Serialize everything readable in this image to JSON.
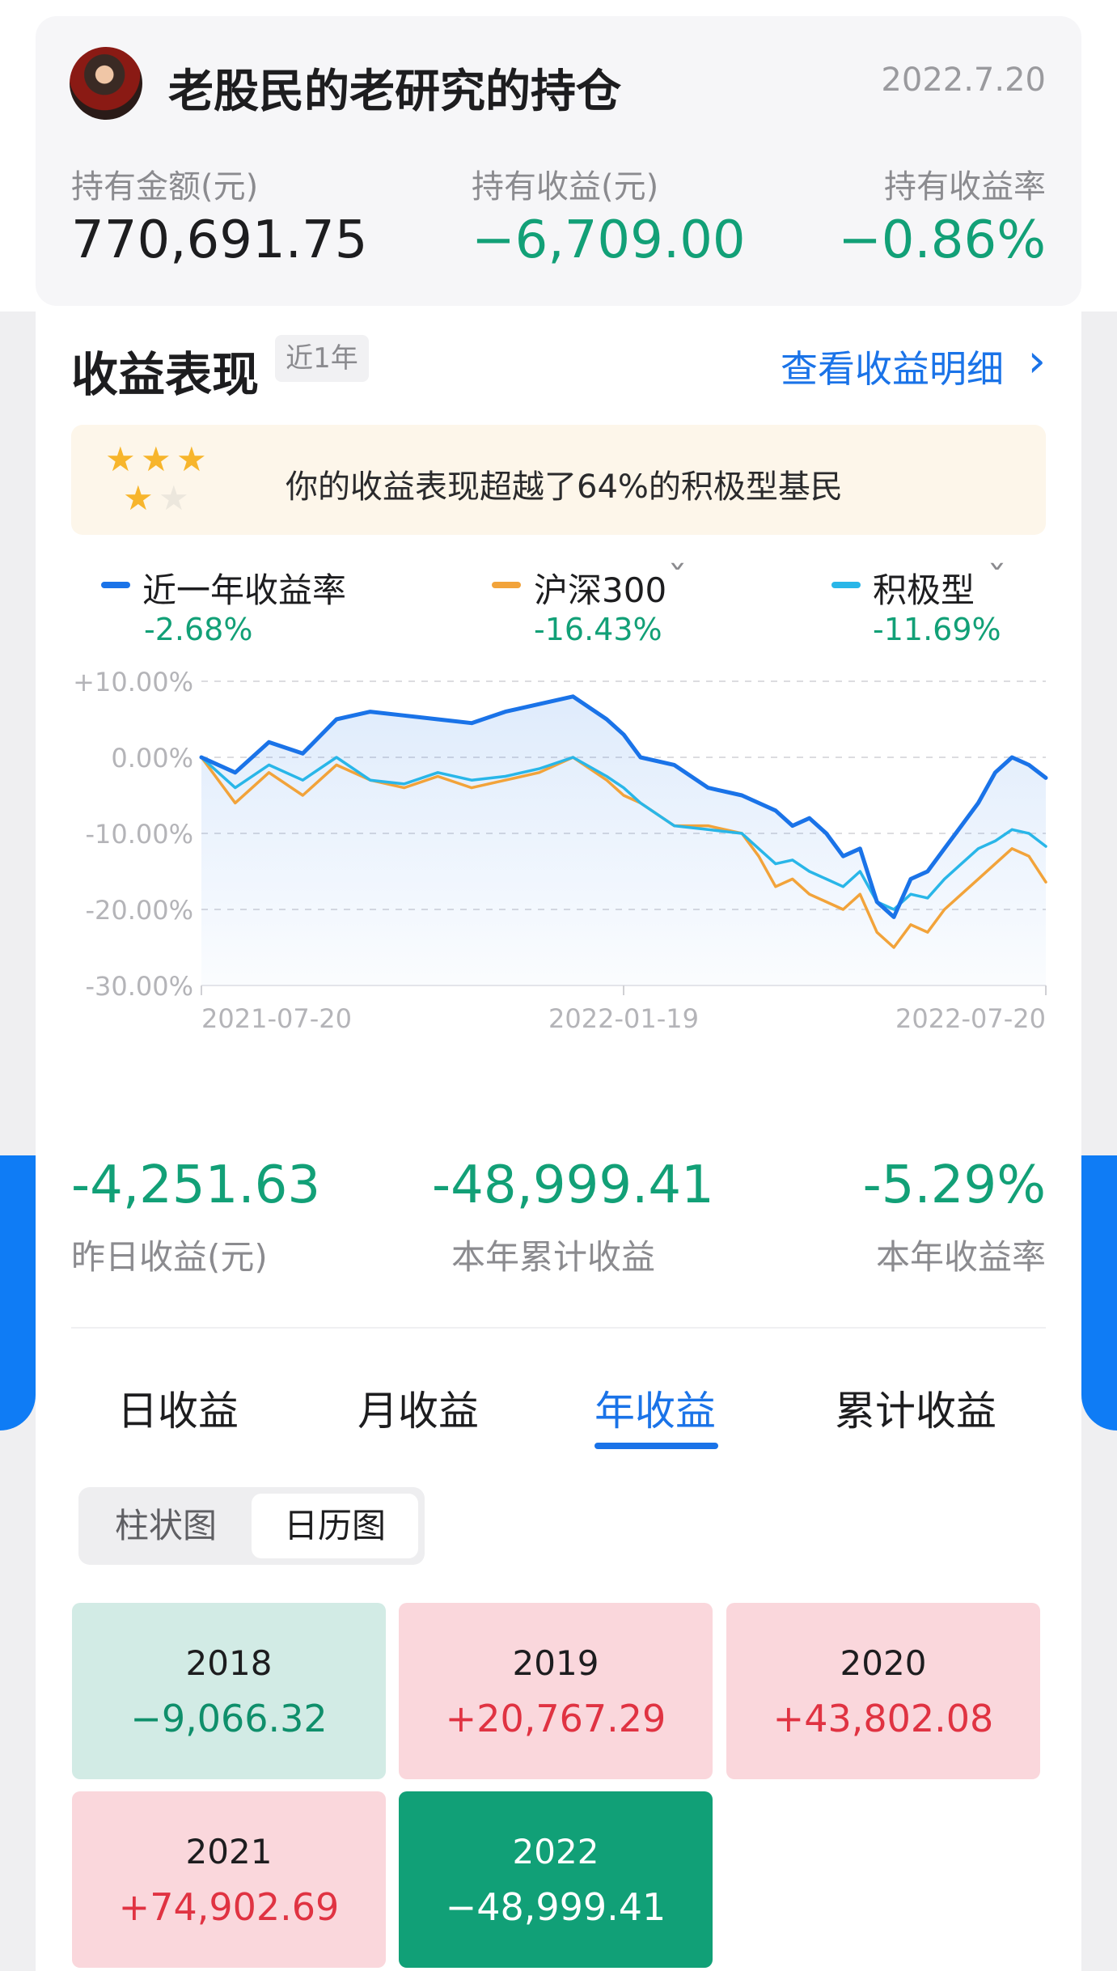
{
  "account": {
    "title": "老股民的老研究的持仓",
    "date": "2022.7.20",
    "metrics": [
      {
        "label": "持有金额(元)",
        "value": "770,691.75"
      },
      {
        "label": "持有收益(元)",
        "value": "−6,709.00"
      },
      {
        "label": "持有收益率",
        "value": "−0.86%"
      }
    ]
  },
  "performance": {
    "title": "收益表现",
    "period": "近1年",
    "detail_link": "查看收益明细",
    "banner_text": "你的收益表现超越了64%的积极型基民",
    "rating": 4,
    "rating_max": 5
  },
  "legend": [
    {
      "label": "近一年收益率",
      "value": "-2.68%"
    },
    {
      "label": "沪深300",
      "value": "-16.43%"
    },
    {
      "label": "积极型",
      "value": "-11.69%"
    }
  ],
  "colors": {
    "portfolio": "#1a73e8",
    "hs300": "#f2a33a",
    "aggressive": "#29b6e8",
    "gain": "#e03342",
    "loss": "#12a077",
    "accent": "#1a73e8"
  },
  "chart_data": {
    "type": "line",
    "y_ticks": [
      "+10.00%",
      "0.00%",
      "-10.00%",
      "-20.00%",
      "-30.00%"
    ],
    "x_ticks": [
      "2021-07-20",
      "2022-01-19",
      "2022-07-20"
    ],
    "ylim": [
      -30,
      10
    ],
    "x": [
      0,
      0.04,
      0.08,
      0.12,
      0.16,
      0.2,
      0.24,
      0.28,
      0.32,
      0.36,
      0.4,
      0.44,
      0.48,
      0.5,
      0.52,
      0.56,
      0.6,
      0.64,
      0.66,
      0.68,
      0.7,
      0.72,
      0.74,
      0.76,
      0.78,
      0.8,
      0.82,
      0.84,
      0.86,
      0.88,
      0.9,
      0.92,
      0.94,
      0.96,
      0.98,
      1.0
    ],
    "series": [
      {
        "name": "近一年收益率",
        "values": [
          0,
          -2,
          2,
          0.5,
          5,
          6,
          5.5,
          5,
          4.5,
          6,
          7,
          8,
          5,
          3,
          0,
          -1,
          -4,
          -5,
          -6,
          -7,
          -9,
          -8,
          -10,
          -13,
          -12,
          -19,
          -21,
          -16,
          -15,
          -12,
          -9,
          -6,
          -2,
          0,
          -1,
          -2.7
        ]
      },
      {
        "name": "沪深300",
        "values": [
          0,
          -6,
          -2,
          -5,
          -1,
          -3,
          -4,
          -2.5,
          -4,
          -3,
          -2,
          0,
          -3,
          -5,
          -6,
          -9,
          -9,
          -10,
          -13,
          -17,
          -16,
          -18,
          -19,
          -20,
          -18,
          -23,
          -25,
          -22,
          -23,
          -20,
          -18,
          -16,
          -14,
          -12,
          -13,
          -16.4
        ]
      },
      {
        "name": "积极型",
        "values": [
          0,
          -4,
          -1,
          -3,
          0,
          -3,
          -3.5,
          -2,
          -3,
          -2.5,
          -1.5,
          0,
          -2.5,
          -4,
          -6,
          -9,
          -9.5,
          -10,
          -12,
          -14,
          -13.5,
          -15,
          -16,
          -17,
          -15,
          -19,
          -20,
          -18,
          -18.5,
          -16,
          -14,
          -12,
          -11,
          -9.5,
          -10,
          -11.7
        ]
      }
    ]
  },
  "summary": [
    {
      "value": "-4,251.63",
      "label": "昨日收益(元)"
    },
    {
      "value": "-48,999.41",
      "label": "本年累计收益"
    },
    {
      "value": "-5.29%",
      "label": "本年收益率"
    }
  ],
  "tabs": [
    "日收益",
    "月收益",
    "年收益",
    "累计收益"
  ],
  "view_toggle": [
    "柱状图",
    "日历图"
  ],
  "years": [
    {
      "year": "2018",
      "amount": "−9,066.32"
    },
    {
      "year": "2019",
      "amount": "+20,767.29"
    },
    {
      "year": "2020",
      "amount": "+43,802.08"
    },
    {
      "year": "2021",
      "amount": "+74,902.69"
    },
    {
      "year": "2022",
      "amount": "−48,999.41"
    }
  ]
}
